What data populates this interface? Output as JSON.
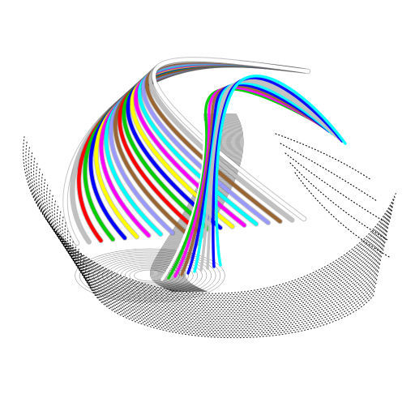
{
  "scene": {
    "background": "#ffffff",
    "dot_color": "#000000",
    "tube_colors": [
      "#ffffff",
      "#c0c0c0",
      "#ff0000",
      "#00cc00",
      "#0000ff",
      "#ffff00",
      "#ff00ff",
      "#00ffff",
      "#9999ff",
      "#996633",
      "#ff0000",
      "#00cc00",
      "#0000ff",
      "#ffff00",
      "#ff00ff",
      "#00ffff",
      "#9999ff",
      "#996633",
      "#c0c0c0",
      "#ffffff"
    ]
  }
}
